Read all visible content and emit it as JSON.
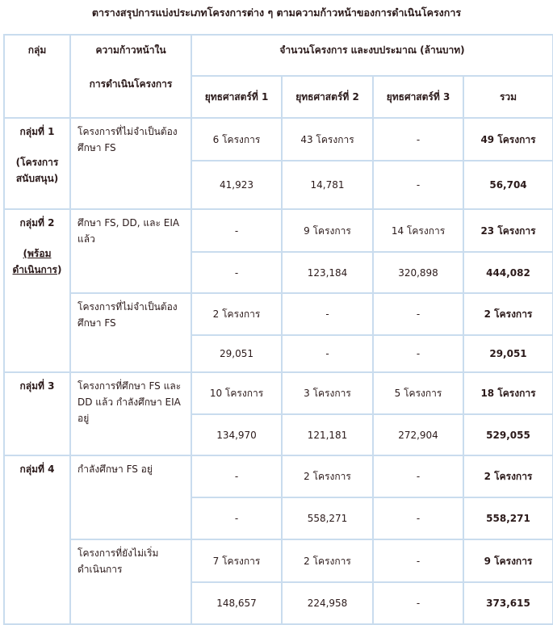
{
  "title": "ตารางสรุปการแบ่งประเภทโครงการต่าง ๆ ตามความก้าวหน้าของการดำเนินโครงการ",
  "headers": {
    "group": "กลุ่ม",
    "progress_line1": "ความก้าวหน้าใน",
    "progress_line2": "การดำเนินโครงการ",
    "amount": "จำนวนโครงการ และงบประมาณ (ล้านบาท)",
    "s1": "ยุทธศาสตร์ที่ 1",
    "s2": "ยุทธศาสตร์ที่ 2",
    "s3": "ยุทธศาสตร์ที่ 3",
    "total": "รวม"
  },
  "groups": [
    {
      "name": "กลุ่มที่ 1",
      "sub": "(โครงการสนับสนุน)"
    },
    {
      "name": "กลุ่มที่ 2",
      "sub_link": "(พร้อม ดำเนินการ",
      "sub_close": ")"
    },
    {
      "name": "กลุ่มที่ 3"
    },
    {
      "name": "กลุ่มที่ 4"
    }
  ],
  "rows": [
    {
      "progress": "โครงการที่ไม่จำเป็นต้องศึกษา FS",
      "count": [
        "6 โครงการ",
        "43 โครงการ",
        "-",
        "49 โครงการ"
      ],
      "budget": [
        "41,923",
        "14,781",
        "-",
        "56,704"
      ]
    },
    {
      "progress": "ศึกษา FS, DD, และ EIA แล้ว",
      "count": [
        "-",
        "9 โครงการ",
        "14 โครงการ",
        "23 โครงการ"
      ],
      "budget": [
        "-",
        "123,184",
        "320,898",
        "444,082"
      ]
    },
    {
      "progress": "โครงการที่ไม่จำเป็นต้องศึกษา FS",
      "count": [
        "2 โครงการ",
        "-",
        "-",
        "2 โครงการ"
      ],
      "budget": [
        "29,051",
        "-",
        "-",
        "29,051"
      ]
    },
    {
      "progress": "โครงการที่ศึกษา FS และ DD แล้ว กำลังศึกษา EIA อยู่",
      "count": [
        "10 โครงการ",
        "3 โครงการ",
        "5 โครงการ",
        "18 โครงการ"
      ],
      "budget": [
        "134,970",
        "121,181",
        "272,904",
        "529,055"
      ]
    },
    {
      "progress": "กำลังศึกษา FS อยู่",
      "count": [
        "-",
        "2 โครงการ",
        "-",
        "2 โครงการ"
      ],
      "budget": [
        "-",
        "558,271",
        "-",
        "558,271"
      ]
    },
    {
      "progress": "โครงการที่ยังไม่เริ่มดำเนินการ",
      "count": [
        "7 โครงการ",
        "2 โครงการ",
        "-",
        "9 โครงการ"
      ],
      "budget": [
        "148,657",
        "224,958",
        "-",
        "373,615"
      ]
    }
  ]
}
